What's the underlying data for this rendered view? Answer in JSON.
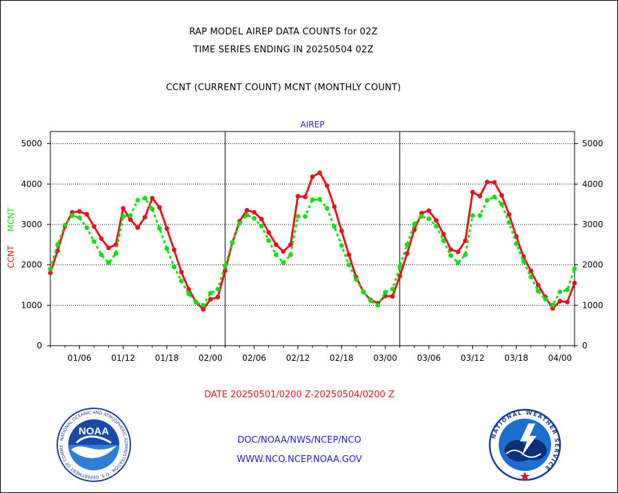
{
  "header": {
    "title_line1": "RAP MODEL AIREP DATA COUNTS for 02Z",
    "title_line2": "TIME SERIES ENDING IN 20250504 02Z",
    "title_line3": "CCNT (CURRENT COUNT) MCNT (MONTHLY COUNT)"
  },
  "footer": {
    "date_range": "DATE 20250501/0200 Z-20250504/0200 Z",
    "org": "DOC/NOAA/NWS/NCEP/NCO",
    "url": "WWW.NCO.NCEP.NOAA.GOV"
  },
  "logos": {
    "left": {
      "icon": "noaa-logo-icon",
      "text": "NOAA",
      "ring_text": "NATIONAL OCEANIC AND ATMOSPHERIC ADMINISTRATION · U.S. DEPARTMENT OF COMMERCE"
    },
    "right": {
      "icon": "nws-logo-icon",
      "ring_text": "NATIONAL WEATHER SERVICE"
    }
  },
  "colors": {
    "ccnt": "#e8141c",
    "mcnt": "#11e011",
    "subtitle": "#2222cc",
    "footer_date": "#e8141c",
    "footer_links": "#2222cc"
  },
  "chart_data": {
    "type": "line",
    "subtitle": "AIREP",
    "xlabel": "",
    "ylabel_left": [
      "CCNT",
      "MCNT"
    ],
    "ylim": [
      0,
      5300
    ],
    "yticks": [
      0,
      1000,
      2000,
      3000,
      4000,
      5000
    ],
    "grid": true,
    "xlim_hours": [
      -2,
      70
    ],
    "x_unit": "hours from 2025-05-01 00Z",
    "day_boundaries": [
      22,
      46,
      70
    ],
    "xticks": [
      {
        "x": 2,
        "label": "01/06"
      },
      {
        "x": 8,
        "label": "01/12"
      },
      {
        "x": 14,
        "label": "01/18"
      },
      {
        "x": 20,
        "label": "02/00"
      },
      {
        "x": 26,
        "label": "02/06"
      },
      {
        "x": 32,
        "label": "02/12"
      },
      {
        "x": 38,
        "label": "02/18"
      },
      {
        "x": 44,
        "label": "03/00"
      },
      {
        "x": 50,
        "label": "03/06"
      },
      {
        "x": 56,
        "label": "03/12"
      },
      {
        "x": 62,
        "label": "03/18"
      },
      {
        "x": 68,
        "label": "04/00"
      }
    ],
    "series": [
      {
        "name": "CCNT",
        "style": "solid",
        "x": [
          -2,
          -1,
          0,
          1,
          2,
          3,
          4,
          5,
          6,
          7,
          8,
          9,
          10,
          11,
          12,
          13,
          14,
          15,
          16,
          17,
          18,
          19,
          20,
          21,
          22,
          23,
          24,
          25,
          26,
          27,
          28,
          29,
          30,
          31,
          32,
          33,
          34,
          35,
          36,
          37,
          38,
          39,
          40,
          41,
          42,
          43,
          44,
          45,
          46,
          47,
          48,
          49,
          50,
          51,
          52,
          53,
          54,
          55,
          56,
          57,
          58,
          59,
          60,
          61,
          62,
          63,
          64,
          65,
          66,
          67,
          68,
          69,
          70
        ],
        "values": [
          1800,
          2350,
          2950,
          3300,
          3320,
          3250,
          2950,
          2650,
          2420,
          2500,
          3400,
          3120,
          2920,
          3180,
          3650,
          3420,
          2900,
          2370,
          1820,
          1400,
          1080,
          900,
          1150,
          1200,
          1850,
          2550,
          3080,
          3350,
          3300,
          3130,
          2800,
          2500,
          2330,
          2500,
          3700,
          3680,
          4180,
          4280,
          3960,
          3440,
          2840,
          2250,
          1700,
          1330,
          1130,
          1050,
          1230,
          1220,
          1720,
          2280,
          2870,
          3280,
          3340,
          3100,
          2760,
          2380,
          2320,
          2600,
          3800,
          3700,
          4050,
          4040,
          3720,
          3250,
          2700,
          2200,
          1850,
          1500,
          1200,
          920,
          1100,
          1080,
          1550
        ]
      },
      {
        "name": "MCNT",
        "style": "dotted",
        "x": [
          -2,
          -1,
          0,
          1,
          2,
          3,
          4,
          5,
          6,
          7,
          8,
          9,
          10,
          11,
          12,
          13,
          14,
          15,
          16,
          17,
          18,
          19,
          20,
          21,
          22,
          23,
          24,
          25,
          26,
          27,
          28,
          29,
          30,
          31,
          32,
          33,
          34,
          35,
          36,
          37,
          38,
          39,
          40,
          41,
          42,
          43,
          44,
          45,
          46,
          47,
          48,
          49,
          50,
          51,
          52,
          53,
          54,
          55,
          56,
          57,
          58,
          59,
          60,
          61,
          62,
          63,
          64,
          65,
          66,
          67,
          68,
          69,
          70
        ],
        "values": [
          1900,
          2500,
          2980,
          3220,
          3170,
          2920,
          2580,
          2250,
          2050,
          2280,
          3200,
          3220,
          3600,
          3650,
          3380,
          2900,
          2400,
          1950,
          1600,
          1280,
          1070,
          1000,
          1300,
          1400,
          1980,
          2550,
          3030,
          3230,
          3150,
          2960,
          2600,
          2250,
          2050,
          2250,
          3200,
          3200,
          3610,
          3620,
          3400,
          2950,
          2480,
          2000,
          1640,
          1330,
          1110,
          1000,
          1320,
          1400,
          1960,
          2500,
          3010,
          3200,
          3140,
          2960,
          2600,
          2230,
          2050,
          2250,
          3220,
          3220,
          3600,
          3680,
          3500,
          3050,
          2520,
          2080,
          1700,
          1350,
          1150,
          1000,
          1330,
          1380,
          1900
        ]
      }
    ]
  }
}
